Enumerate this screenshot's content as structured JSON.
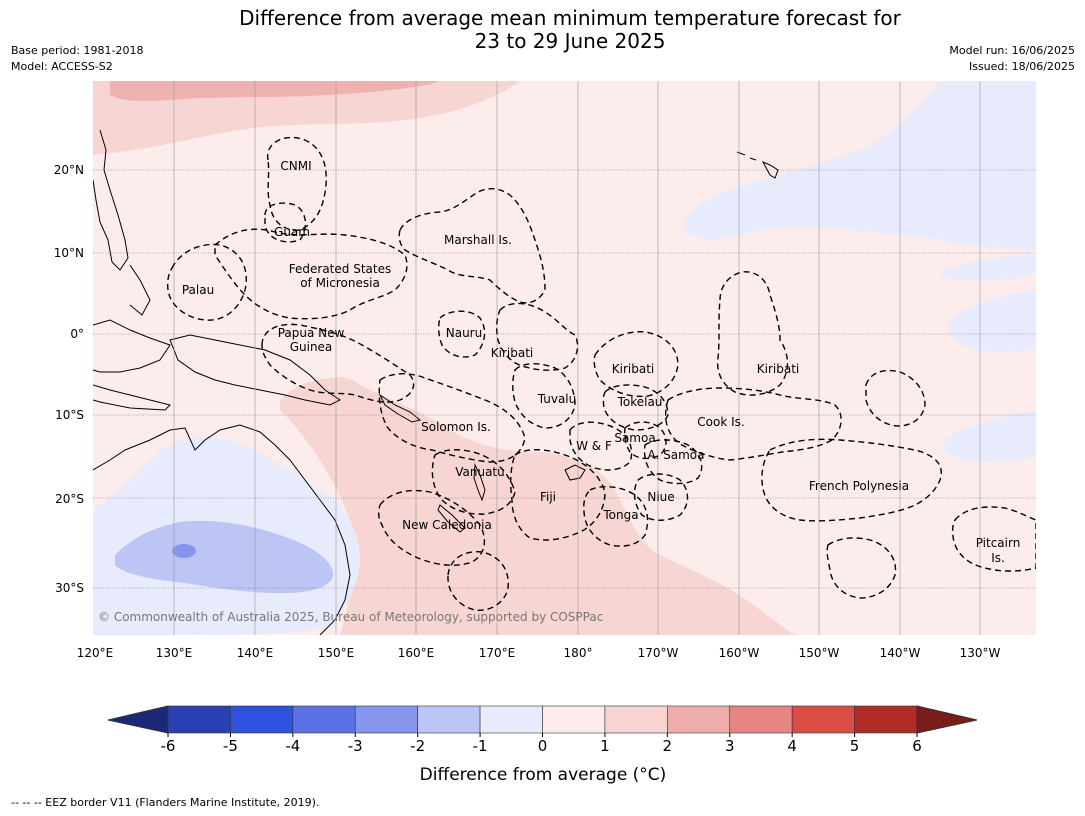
{
  "title_line1": "Difference from average mean minimum temperature forecast for",
  "title_line2": "23 to 29 June 2025",
  "base_period": "Base period: 1981-2018",
  "model": "Model: ACCESS-S2",
  "model_run": "Model run: 16/06/2025",
  "issued": "Issued: 18/06/2025",
  "copyright": "© Commonwealth of Australia 2025, Bureau of Meteorology, supported by COSPPac",
  "footer": "--  --  -- EEZ border V11 (Flanders Marine Institute, 2019).",
  "lat_labels": [
    "20°N",
    "10°N",
    "0°",
    "10°S",
    "20°S",
    "30°S"
  ],
  "lon_labels": [
    "120°E",
    "130°E",
    "140°E",
    "150°E",
    "160°E",
    "170°E",
    "180°",
    "170°W",
    "160°W",
    "150°W",
    "140°W",
    "130°W"
  ],
  "places": {
    "cnmi": "CNMI",
    "guam": "Guam",
    "marshall": "Marshall Is.",
    "fsm1": "Federated States",
    "fsm2": "of Micronesia",
    "palau": "Palau",
    "png1": "Papua New",
    "png2": "Guinea",
    "nauru": "Nauru",
    "kiribati_w": "Kiribati",
    "kiribati_c": "Kiribati",
    "kiribati_e": "Kiribati",
    "tuvalu": "Tuvalu",
    "tokelau": "Tokelau",
    "cook": "Cook Is.",
    "solomon": "Solomon Is.",
    "samoa": "Samoa",
    "wf": "W & F",
    "asamoa": "A. Samoa",
    "vanuatu": "Vanuatu",
    "fiji": "Fiji",
    "niue": "Niue",
    "tonga": "Tonga",
    "newcal": "New Caledonia",
    "frpoly": "French Polynesia",
    "pitcairn1": "Pitcairn",
    "pitcairn2": "Is."
  },
  "colorbar": {
    "title": "Difference from average ($^\\circ$C)",
    "title_display": "Difference from average (°C)",
    "tick_labels": [
      "-6",
      "-5",
      "-4",
      "-3",
      "-2",
      "-1",
      "0",
      "1",
      "2",
      "3",
      "4",
      "5",
      "6"
    ],
    "colors": [
      "#2a3fb4",
      "#2f52e0",
      "#5a72e6",
      "#8596ec",
      "#bcc5f3",
      "#e8ebfc",
      "#fcecec",
      "#f7d3d3",
      "#eeacab",
      "#e68583",
      "#db4c44",
      "#b02c24"
    ],
    "under_color": "#1a2878",
    "over_color": "#7a1c18"
  },
  "map_colors": {
    "base": "#fcecec",
    "light_red": "#f7d5d3",
    "mid_red": "#efb2b0",
    "light_blue": "#e8ebfc",
    "mid_blue": "#bcc5f3",
    "dark_blue": "#8596ec"
  }
}
